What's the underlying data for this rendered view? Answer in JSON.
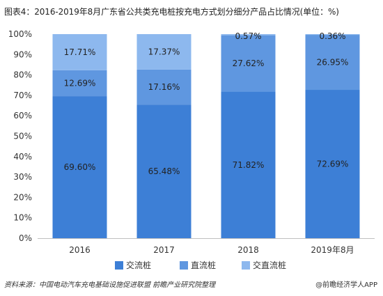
{
  "title": "图表4：2016-2019年8月广东省公共类充电桩按充电方式划分细分产品占比情况(单位：%)",
  "source_text": "资料来源：中国电动汽车充电基础设施促进联盟 前瞻产业研究院整理",
  "brand_text": "@前瞻经济学人APP",
  "colors": {
    "ac": "#3d7fd6",
    "dc": "#5f97e0",
    "acdc": "#8db8ee"
  },
  "chart_data": {
    "type": "bar",
    "stacked": true,
    "categories": [
      "2016",
      "2017",
      "2018",
      "2019年8月"
    ],
    "series": [
      {
        "name": "交流桩",
        "values": [
          69.6,
          65.48,
          71.82,
          72.69
        ],
        "labels": [
          "69.60%",
          "65.48%",
          "71.82%",
          "72.69%"
        ]
      },
      {
        "name": "直流桩",
        "values": [
          12.69,
          17.16,
          27.62,
          26.95
        ],
        "labels": [
          "12.69%",
          "17.16%",
          "27.62%",
          "26.95%"
        ]
      },
      {
        "name": "交直流桩",
        "values": [
          17.71,
          17.37,
          0.57,
          0.36
        ],
        "labels": [
          "17.71%",
          "17.37%",
          "0.57%",
          "0.36%"
        ]
      }
    ],
    "yticks": [
      "0%",
      "10%",
      "20%",
      "30%",
      "40%",
      "50%",
      "60%",
      "70%",
      "80%",
      "90%",
      "100%"
    ],
    "ylim": [
      0,
      100
    ],
    "legend": "bottom"
  }
}
